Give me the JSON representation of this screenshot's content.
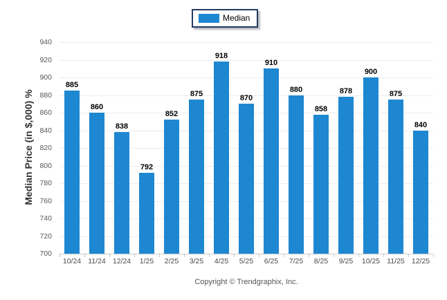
{
  "legend": {
    "label": "Median",
    "swatch_color": "#1e87d1"
  },
  "footer": {
    "copyright": "Copyright © Trendgraphix, Inc."
  },
  "chart_data": {
    "type": "bar",
    "title": "",
    "xlabel": "",
    "ylabel": "Median Price (in $,000) %",
    "categories": [
      "10/24",
      "11/24",
      "12/24",
      "1/25",
      "2/25",
      "3/25",
      "4/25",
      "5/25",
      "6/25",
      "7/25",
      "8/25",
      "9/25",
      "10/25",
      "11/25",
      "12/25"
    ],
    "series": [
      {
        "name": "Median",
        "color": "#1e87d1",
        "values": [
          885,
          860,
          838,
          792,
          852,
          875,
          918,
          870,
          910,
          880,
          858,
          878,
          900,
          875,
          840
        ]
      }
    ],
    "ylim": [
      700,
      940
    ],
    "ytick_step": 20,
    "grid": "horizontal",
    "legend_position": "top-center",
    "value_labels": "above-bars"
  },
  "colors": {
    "bar": "#1e87d1",
    "gridline": "#ececec",
    "axis_line": "#c9c9c9",
    "tick_label": "#555555",
    "value_label": "#000000",
    "legend_border": "#233a60"
  }
}
